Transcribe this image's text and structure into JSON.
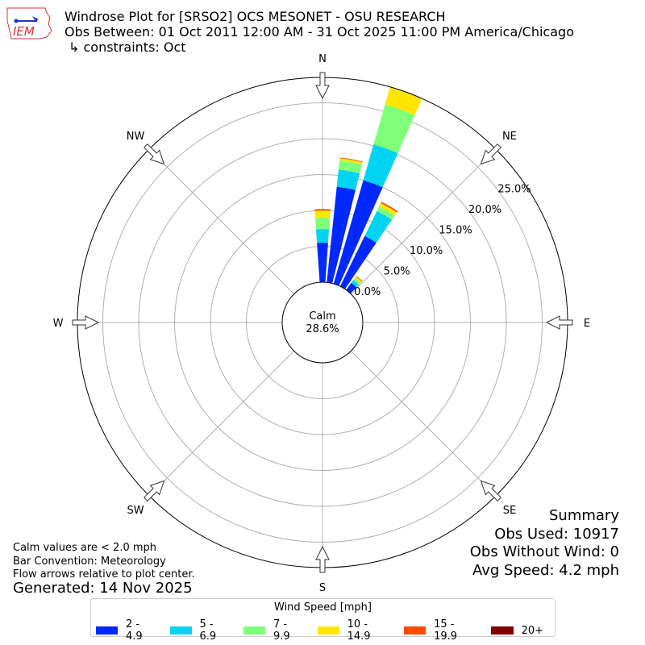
{
  "header": {
    "logo_text": "IEM",
    "title_line1": "Windrose Plot for [SRSO2] OCS MESONET - OSU RESEARCH",
    "title_line2": "Obs Between: 01 Oct 2011 12:00 AM - 31 Oct 2025 11:00 PM America/Chicago",
    "title_line3": "↳ constraints: Oct"
  },
  "footer": {
    "line1": "Calm values are < 2.0 mph",
    "line2": "Bar Convention: Meteorology",
    "line3": "Flow arrows relative to plot center.",
    "generated": "Generated: 14 Nov 2025"
  },
  "summary": {
    "title": "Summary",
    "obs_used": "Obs Used: 10917",
    "obs_without_wind": "Obs Without Wind: 0",
    "avg_speed": "Avg Speed: 4.2 mph"
  },
  "chart_data": {
    "type": "windrose",
    "calm_label": "Calm",
    "calm_value": "28.6%",
    "directions": [
      "N",
      "NE",
      "E",
      "SE",
      "S",
      "SW",
      "W",
      "NW"
    ],
    "radial_ticks": [
      "0.0%",
      "5.0%",
      "10.0%",
      "15.0%",
      "20.0%",
      "25.0%"
    ],
    "radial_tick_values": [
      0,
      5,
      10,
      15,
      20,
      25
    ],
    "rmax": 28.6,
    "legend_title": "Wind Speed [mph]",
    "bins": [
      {
        "label": "2 - 4.9",
        "color": "#0028ff"
      },
      {
        "label": "5 - 6.9",
        "color": "#00d4f0"
      },
      {
        "label": "7 - 9.9",
        "color": "#80ff7a"
      },
      {
        "label": "10 - 14.9",
        "color": "#ffe600"
      },
      {
        "label": "15 - 19.9",
        "color": "#ff4a00"
      },
      {
        "label": "20+",
        "color": "#800000"
      }
    ],
    "bars": [
      {
        "direction_deg": 0,
        "values": [
          5.5,
          1.9,
          1.6,
          1.0,
          0.2,
          0
        ]
      },
      {
        "direction_deg": 10,
        "values": [
          13.4,
          2.4,
          1.3,
          0.3,
          0.1,
          0
        ]
      },
      {
        "direction_deg": 20,
        "values": [
          15.0,
          5.2,
          5.8,
          2.5,
          0.1,
          0
        ]
      },
      {
        "direction_deg": 30,
        "values": [
          7.8,
          3.9,
          0.7,
          0.5,
          0.2,
          0
        ]
      },
      {
        "direction_deg": 40,
        "values": [
          1.2,
          0.5,
          0.3,
          0.3,
          0.1,
          0
        ]
      }
    ]
  }
}
